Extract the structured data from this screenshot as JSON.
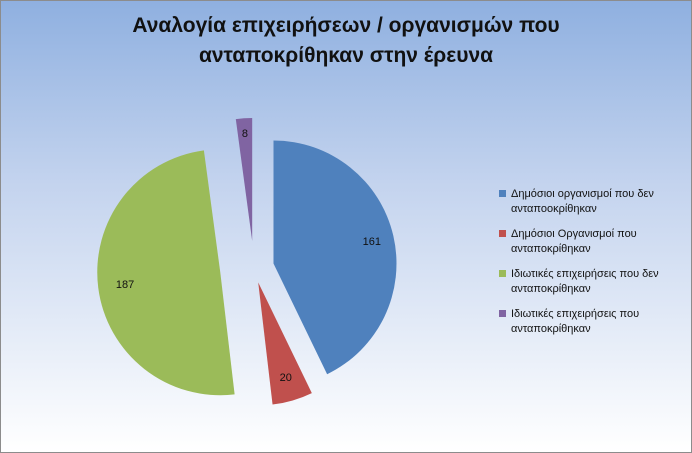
{
  "chart_data": {
    "type": "pie",
    "title": "Αναλογία επιχειρήσεων / οργανισμών που ανταποκρίθηκαν στην έρευνα",
    "categories": [
      "Δημόσιοι οργανισμοί που δεν ανταποοκρίθηκαν",
      "Δημόσιοι Οργανισμοί που ανταποκρίθηκαν",
      "Ιδιωτικές επιχειρήσεις που δεν ανταποκρίθηκαν",
      "Ιδιωτικές επιχειρήσεις που ανταποκρίθηκαν"
    ],
    "values": [
      161,
      20,
      187,
      8
    ],
    "colors": [
      "#4f81bd",
      "#c0504d",
      "#9bbb59",
      "#8064a2"
    ],
    "exploded": true,
    "legend_position": "right",
    "data_labels": [
      "161",
      "20",
      "187",
      "8"
    ]
  },
  "title": {
    "line1": "Αναλογία επιχειρήσεων / οργανισμών που",
    "line2": "ανταποκρίθηκαν στην έρευνα"
  }
}
